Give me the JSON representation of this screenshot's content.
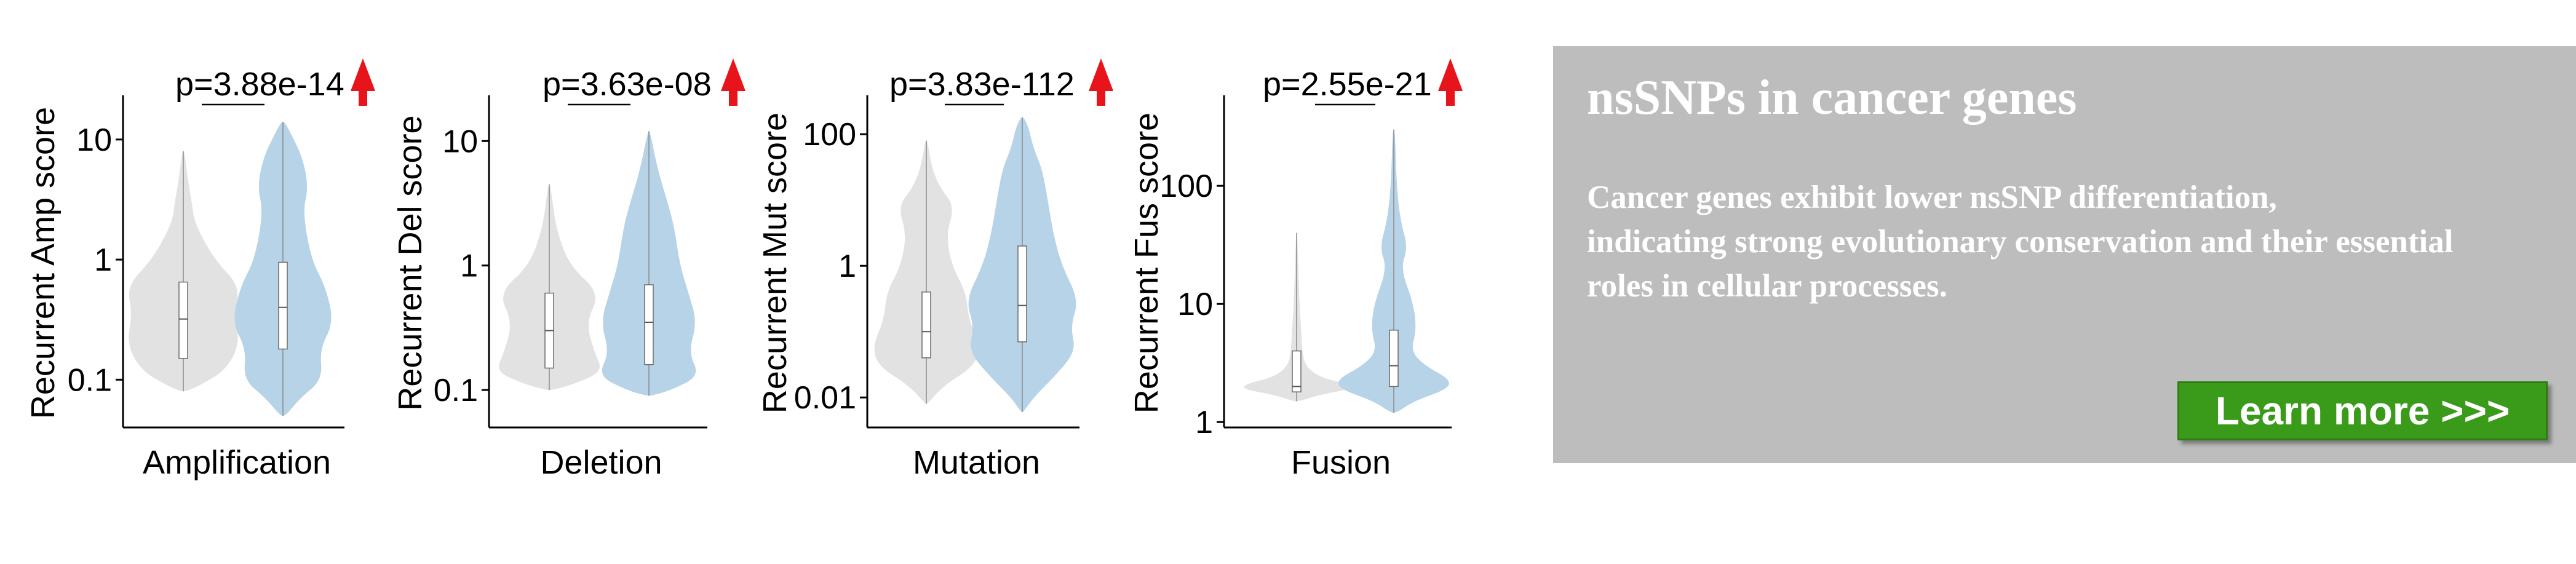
{
  "colors": {
    "left_violin": "#e2e2e2",
    "right_violin": "#b7d3e8",
    "box": "#ffffff",
    "arrow": "#e8141b",
    "promo_bg": "#bdbdbd",
    "button_bg": "#3a9a19",
    "text_on_promo": "#ffffff"
  },
  "chart_data": [
    {
      "type": "violin",
      "scale": "log",
      "ylabel": "Recurrent Amp score",
      "xlabel": "Amplification",
      "yticks": [
        0.1,
        1,
        10
      ],
      "ytick_labels": [
        "0.1",
        "1",
        "10"
      ],
      "ylim": [
        0.04,
        22
      ],
      "pvalue": "p=3.88e-14",
      "arrow": "up",
      "series": [
        {
          "min": 0.08,
          "q1": 0.15,
          "median": 0.32,
          "q3": 0.65,
          "max": 8,
          "profile": [
            [
              0.08,
              0.05
            ],
            [
              0.09,
              0.3
            ],
            [
              0.12,
              0.75
            ],
            [
              0.2,
              1.0
            ],
            [
              0.35,
              0.9
            ],
            [
              0.6,
              1.0
            ],
            [
              1.0,
              0.55
            ],
            [
              2,
              0.2
            ],
            [
              3,
              0.15
            ],
            [
              5,
              0.07
            ],
            [
              8,
              0.02
            ]
          ]
        },
        {
          "min": 0.05,
          "q1": 0.18,
          "median": 0.4,
          "q3": 0.95,
          "max": 14,
          "profile": [
            [
              0.05,
              0.05
            ],
            [
              0.07,
              0.3
            ],
            [
              0.1,
              0.7
            ],
            [
              0.18,
              0.65
            ],
            [
              0.3,
              0.9
            ],
            [
              0.6,
              0.75
            ],
            [
              1.0,
              0.5
            ],
            [
              2.5,
              0.35
            ],
            [
              4,
              0.45
            ],
            [
              7,
              0.35
            ],
            [
              11,
              0.15
            ],
            [
              14,
              0.03
            ]
          ]
        }
      ]
    },
    {
      "type": "violin",
      "scale": "log",
      "ylabel": "Recurrent Del score",
      "xlabel": "Deletion",
      "yticks": [
        0.1,
        1,
        10
      ],
      "ytick_labels": [
        "0.1",
        "1",
        "10"
      ],
      "ylim": [
        0.05,
        22
      ],
      "pvalue": "p=3.63e-08",
      "arrow": "up",
      "series": [
        {
          "min": 0.1,
          "q1": 0.15,
          "median": 0.3,
          "q3": 0.6,
          "max": 4.5,
          "profile": [
            [
              0.1,
              0.05
            ],
            [
              0.11,
              0.4
            ],
            [
              0.14,
              0.95
            ],
            [
              0.2,
              0.8
            ],
            [
              0.35,
              0.65
            ],
            [
              0.6,
              0.9
            ],
            [
              1.0,
              0.35
            ],
            [
              2,
              0.12
            ],
            [
              3.5,
              0.05
            ],
            [
              4.5,
              0.01
            ]
          ]
        },
        {
          "min": 0.09,
          "q1": 0.16,
          "median": 0.35,
          "q3": 0.7,
          "max": 12,
          "profile": [
            [
              0.09,
              0.05
            ],
            [
              0.1,
              0.4
            ],
            [
              0.13,
              0.9
            ],
            [
              0.2,
              0.7
            ],
            [
              0.35,
              0.85
            ],
            [
              0.6,
              0.7
            ],
            [
              1.0,
              0.55
            ],
            [
              2,
              0.45
            ],
            [
              3,
              0.35
            ],
            [
              6,
              0.15
            ],
            [
              12,
              0.02
            ]
          ]
        }
      ]
    },
    {
      "type": "violin",
      "scale": "log",
      "ylabel": "Recurrent Mut score",
      "xlabel": "Mutation",
      "yticks": [
        0.01,
        1,
        100
      ],
      "ytick_labels": [
        "0.01",
        "1",
        "100"
      ],
      "ylim": [
        0.0035,
        350
      ],
      "pvalue": "p=3.83e-112",
      "arrow": "up",
      "series": [
        {
          "min": 0.008,
          "q1": 0.04,
          "median": 0.1,
          "q3": 0.4,
          "max": 80,
          "profile": [
            [
              0.008,
              0.02
            ],
            [
              0.015,
              0.3
            ],
            [
              0.03,
              0.85
            ],
            [
              0.06,
              0.95
            ],
            [
              0.15,
              0.75
            ],
            [
              0.4,
              0.7
            ],
            [
              1,
              0.45
            ],
            [
              3,
              0.35
            ],
            [
              8,
              0.5
            ],
            [
              15,
              0.25
            ],
            [
              30,
              0.1
            ],
            [
              80,
              0.02
            ]
          ]
        },
        {
          "min": 0.006,
          "q1": 0.07,
          "median": 0.25,
          "q3": 2,
          "max": 180,
          "profile": [
            [
              0.006,
              0.02
            ],
            [
              0.01,
              0.2
            ],
            [
              0.02,
              0.55
            ],
            [
              0.05,
              0.95
            ],
            [
              0.12,
              0.85
            ],
            [
              0.3,
              1.0
            ],
            [
              1,
              0.7
            ],
            [
              3,
              0.55
            ],
            [
              10,
              0.45
            ],
            [
              30,
              0.35
            ],
            [
              60,
              0.2
            ],
            [
              120,
              0.12
            ],
            [
              180,
              0.03
            ]
          ]
        }
      ]
    },
    {
      "type": "violin",
      "scale": "log",
      "ylabel": "Recurrent Fus score",
      "xlabel": "Fusion",
      "yticks": [
        1,
        10,
        100
      ],
      "ytick_labels": [
        "1",
        "10",
        "100"
      ],
      "ylim": [
        0.9,
        550
      ],
      "pvalue": "p=2.55e-21",
      "arrow": "up",
      "series": [
        {
          "min": 1.5,
          "q1": 1.8,
          "median": 2,
          "q3": 4,
          "max": 40,
          "profile": [
            [
              1.5,
              0.05
            ],
            [
              1.7,
              0.4
            ],
            [
              1.9,
              0.95
            ],
            [
              2.1,
              0.9
            ],
            [
              2.4,
              0.4
            ],
            [
              3,
              0.15
            ],
            [
              4,
              0.1
            ],
            [
              6,
              0.08
            ],
            [
              10,
              0.05
            ],
            [
              20,
              0.03
            ],
            [
              40,
              0.01
            ]
          ]
        },
        {
          "min": 1.2,
          "q1": 2,
          "median": 3,
          "q3": 6,
          "max": 300,
          "profile": [
            [
              1.2,
              0.05
            ],
            [
              1.5,
              0.35
            ],
            [
              1.9,
              0.95
            ],
            [
              2.3,
              1.0
            ],
            [
              3,
              0.55
            ],
            [
              4,
              0.3
            ],
            [
              6,
              0.4
            ],
            [
              10,
              0.35
            ],
            [
              20,
              0.12
            ],
            [
              30,
              0.25
            ],
            [
              50,
              0.12
            ],
            [
              100,
              0.05
            ],
            [
              300,
              0.02
            ]
          ]
        }
      ]
    }
  ],
  "promo": {
    "title": "nsSNPs in cancer genes",
    "line1": "Cancer genes exhibit lower nsSNP differentiation,",
    "line2": "indicating strong evolutionary conservation and their essential",
    "line3": "roles in cellular processes.",
    "button": "Learn more >>>"
  }
}
